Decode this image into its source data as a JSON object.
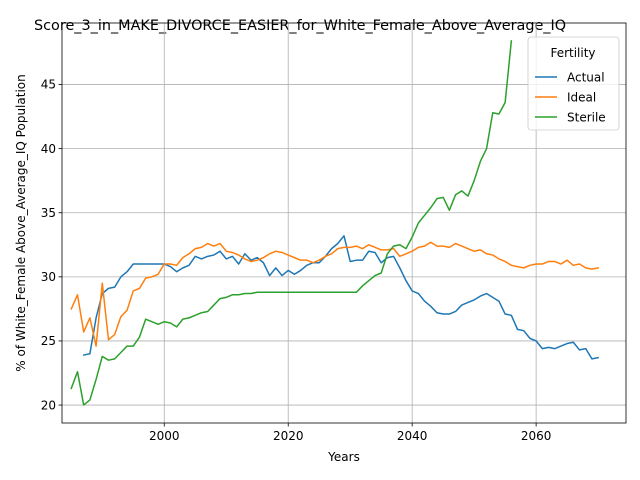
{
  "chart_data": {
    "type": "line",
    "title": "Score_3_in_MAKE_DIVORCE_EASIER_for_White_Female_Above_Average_IQ",
    "xlabel": "Years",
    "ylabel": "% of White_Female Above_Average_IQ Population",
    "xlim": [
      1983.5,
      2074.5
    ],
    "ylim": [
      18.6,
      49.8
    ],
    "xticks": [
      2000,
      2020,
      2040,
      2060
    ],
    "yticks": [
      20,
      25,
      30,
      35,
      40,
      45
    ],
    "grid": true,
    "legend": {
      "title": "Fertility",
      "placement": "top-right"
    },
    "series": [
      {
        "name": "Actual",
        "color": "#1f77b4",
        "points": [
          [
            1987,
            23.9
          ],
          [
            1988,
            24.0
          ],
          [
            1989,
            26.8
          ],
          [
            1990,
            28.7
          ],
          [
            1991,
            29.1
          ],
          [
            1992,
            29.2
          ],
          [
            1993,
            30.0
          ],
          [
            1994,
            30.4
          ],
          [
            1995,
            31.0
          ],
          [
            1996,
            31.0
          ],
          [
            1997,
            31.0
          ],
          [
            1998,
            31.0
          ],
          [
            1999,
            31.0
          ],
          [
            2000,
            31.0
          ],
          [
            2001,
            30.8
          ],
          [
            2002,
            30.4
          ],
          [
            2003,
            30.7
          ],
          [
            2004,
            30.9
          ],
          [
            2005,
            31.6
          ],
          [
            2006,
            31.4
          ],
          [
            2007,
            31.6
          ],
          [
            2008,
            31.7
          ],
          [
            2009,
            32.0
          ],
          [
            2010,
            31.4
          ],
          [
            2011,
            31.6
          ],
          [
            2012,
            31.0
          ],
          [
            2013,
            31.8
          ],
          [
            2014,
            31.3
          ],
          [
            2015,
            31.5
          ],
          [
            2016,
            31.1
          ],
          [
            2017,
            30.1
          ],
          [
            2018,
            30.7
          ],
          [
            2019,
            30.1
          ],
          [
            2020,
            30.5
          ],
          [
            2021,
            30.2
          ],
          [
            2022,
            30.5
          ],
          [
            2023,
            30.9
          ],
          [
            2024,
            31.1
          ],
          [
            2025,
            31.1
          ],
          [
            2026,
            31.6
          ],
          [
            2027,
            32.2
          ],
          [
            2028,
            32.6
          ],
          [
            2029,
            33.2
          ],
          [
            2030,
            31.2
          ],
          [
            2031,
            31.3
          ],
          [
            2032,
            31.3
          ],
          [
            2033,
            32.0
          ],
          [
            2034,
            31.9
          ],
          [
            2035,
            31.1
          ],
          [
            2036,
            31.5
          ],
          [
            2037,
            31.6
          ],
          [
            2038,
            30.7
          ],
          [
            2039,
            29.7
          ],
          [
            2040,
            28.9
          ],
          [
            2041,
            28.7
          ],
          [
            2042,
            28.1
          ],
          [
            2043,
            27.7
          ],
          [
            2044,
            27.2
          ],
          [
            2045,
            27.1
          ],
          [
            2046,
            27.1
          ],
          [
            2047,
            27.3
          ],
          [
            2048,
            27.8
          ],
          [
            2049,
            28.0
          ],
          [
            2050,
            28.2
          ],
          [
            2051,
            28.5
          ],
          [
            2052,
            28.7
          ],
          [
            2053,
            28.4
          ],
          [
            2054,
            28.1
          ],
          [
            2055,
            27.1
          ],
          [
            2056,
            27.0
          ],
          [
            2057,
            25.9
          ],
          [
            2058,
            25.8
          ],
          [
            2059,
            25.2
          ],
          [
            2060,
            25.0
          ],
          [
            2061,
            24.4
          ],
          [
            2062,
            24.5
          ],
          [
            2063,
            24.4
          ],
          [
            2064,
            24.6
          ],
          [
            2065,
            24.8
          ],
          [
            2066,
            24.9
          ],
          [
            2067,
            24.3
          ],
          [
            2068,
            24.4
          ],
          [
            2069,
            23.6
          ],
          [
            2070,
            23.7
          ]
        ]
      },
      {
        "name": "Ideal",
        "color": "#ff7f0e",
        "points": [
          [
            1985,
            27.5
          ],
          [
            1986,
            28.6
          ],
          [
            1987,
            25.7
          ],
          [
            1988,
            26.8
          ],
          [
            1989,
            24.6
          ],
          [
            1990,
            29.5
          ],
          [
            1991,
            25.1
          ],
          [
            1992,
            25.5
          ],
          [
            1993,
            26.9
          ],
          [
            1994,
            27.4
          ],
          [
            1995,
            28.9
          ],
          [
            1996,
            29.1
          ],
          [
            1997,
            29.9
          ],
          [
            1998,
            30.0
          ],
          [
            1999,
            30.2
          ],
          [
            2000,
            31.0
          ],
          [
            2001,
            31.0
          ],
          [
            2002,
            30.9
          ],
          [
            2003,
            31.5
          ],
          [
            2004,
            31.8
          ],
          [
            2005,
            32.2
          ],
          [
            2006,
            32.3
          ],
          [
            2007,
            32.6
          ],
          [
            2008,
            32.4
          ],
          [
            2009,
            32.6
          ],
          [
            2010,
            32.0
          ],
          [
            2011,
            31.9
          ],
          [
            2012,
            31.7
          ],
          [
            2013,
            31.4
          ],
          [
            2014,
            31.2
          ],
          [
            2015,
            31.3
          ],
          [
            2016,
            31.5
          ],
          [
            2017,
            31.8
          ],
          [
            2018,
            32.0
          ],
          [
            2019,
            31.9
          ],
          [
            2020,
            31.7
          ],
          [
            2021,
            31.5
          ],
          [
            2022,
            31.3
          ],
          [
            2023,
            31.3
          ],
          [
            2024,
            31.1
          ],
          [
            2025,
            31.3
          ],
          [
            2026,
            31.6
          ],
          [
            2027,
            31.8
          ],
          [
            2028,
            32.2
          ],
          [
            2029,
            32.3
          ],
          [
            2030,
            32.3
          ],
          [
            2031,
            32.4
          ],
          [
            2032,
            32.2
          ],
          [
            2033,
            32.5
          ],
          [
            2034,
            32.3
          ],
          [
            2035,
            32.1
          ],
          [
            2036,
            32.1
          ],
          [
            2037,
            32.2
          ],
          [
            2038,
            31.6
          ],
          [
            2039,
            31.8
          ],
          [
            2040,
            32.0
          ],
          [
            2041,
            32.3
          ],
          [
            2042,
            32.4
          ],
          [
            2043,
            32.7
          ],
          [
            2044,
            32.4
          ],
          [
            2045,
            32.4
          ],
          [
            2046,
            32.3
          ],
          [
            2047,
            32.6
          ],
          [
            2048,
            32.4
          ],
          [
            2049,
            32.2
          ],
          [
            2050,
            32.0
          ],
          [
            2051,
            32.1
          ],
          [
            2052,
            31.8
          ],
          [
            2053,
            31.7
          ],
          [
            2054,
            31.4
          ],
          [
            2055,
            31.2
          ],
          [
            2056,
            30.9
          ],
          [
            2057,
            30.8
          ],
          [
            2058,
            30.7
          ],
          [
            2059,
            30.9
          ],
          [
            2060,
            31.0
          ],
          [
            2061,
            31.0
          ],
          [
            2062,
            31.2
          ],
          [
            2063,
            31.2
          ],
          [
            2064,
            31.0
          ],
          [
            2065,
            31.3
          ],
          [
            2066,
            30.9
          ],
          [
            2067,
            31.0
          ],
          [
            2068,
            30.7
          ],
          [
            2069,
            30.6
          ],
          [
            2070,
            30.7
          ]
        ]
      },
      {
        "name": "Sterile",
        "color": "#2ca02c",
        "points": [
          [
            1985,
            21.3
          ],
          [
            1986,
            22.6
          ],
          [
            1987,
            20.0
          ],
          [
            1988,
            20.4
          ],
          [
            1989,
            22.0
          ],
          [
            1990,
            23.8
          ],
          [
            1991,
            23.5
          ],
          [
            1992,
            23.6
          ],
          [
            1993,
            24.1
          ],
          [
            1994,
            24.6
          ],
          [
            1995,
            24.6
          ],
          [
            1996,
            25.3
          ],
          [
            1997,
            26.7
          ],
          [
            1998,
            26.5
          ],
          [
            1999,
            26.3
          ],
          [
            2000,
            26.5
          ],
          [
            2001,
            26.4
          ],
          [
            2002,
            26.1
          ],
          [
            2003,
            26.7
          ],
          [
            2004,
            26.8
          ],
          [
            2005,
            27.0
          ],
          [
            2006,
            27.2
          ],
          [
            2007,
            27.3
          ],
          [
            2008,
            27.8
          ],
          [
            2009,
            28.3
          ],
          [
            2010,
            28.4
          ],
          [
            2011,
            28.6
          ],
          [
            2012,
            28.6
          ],
          [
            2013,
            28.7
          ],
          [
            2014,
            28.7
          ],
          [
            2015,
            28.8
          ],
          [
            2016,
            28.8
          ],
          [
            2017,
            28.8
          ],
          [
            2018,
            28.8
          ],
          [
            2019,
            28.8
          ],
          [
            2020,
            28.8
          ],
          [
            2021,
            28.8
          ],
          [
            2022,
            28.8
          ],
          [
            2023,
            28.8
          ],
          [
            2024,
            28.8
          ],
          [
            2025,
            28.8
          ],
          [
            2026,
            28.8
          ],
          [
            2027,
            28.8
          ],
          [
            2028,
            28.8
          ],
          [
            2029,
            28.8
          ],
          [
            2030,
            28.8
          ],
          [
            2031,
            28.8
          ],
          [
            2032,
            29.3
          ],
          [
            2033,
            29.7
          ],
          [
            2034,
            30.1
          ],
          [
            2035,
            30.3
          ],
          [
            2036,
            31.8
          ],
          [
            2037,
            32.4
          ],
          [
            2038,
            32.5
          ],
          [
            2039,
            32.2
          ],
          [
            2040,
            33.1
          ],
          [
            2041,
            34.2
          ],
          [
            2042,
            34.8
          ],
          [
            2043,
            35.4
          ],
          [
            2044,
            36.1
          ],
          [
            2045,
            36.2
          ],
          [
            2046,
            35.2
          ],
          [
            2047,
            36.4
          ],
          [
            2048,
            36.7
          ],
          [
            2049,
            36.3
          ],
          [
            2050,
            37.5
          ],
          [
            2051,
            39.0
          ],
          [
            2052,
            40.0
          ],
          [
            2053,
            42.8
          ],
          [
            2054,
            42.7
          ],
          [
            2055,
            43.6
          ],
          [
            2056,
            48.4
          ]
        ]
      }
    ]
  }
}
